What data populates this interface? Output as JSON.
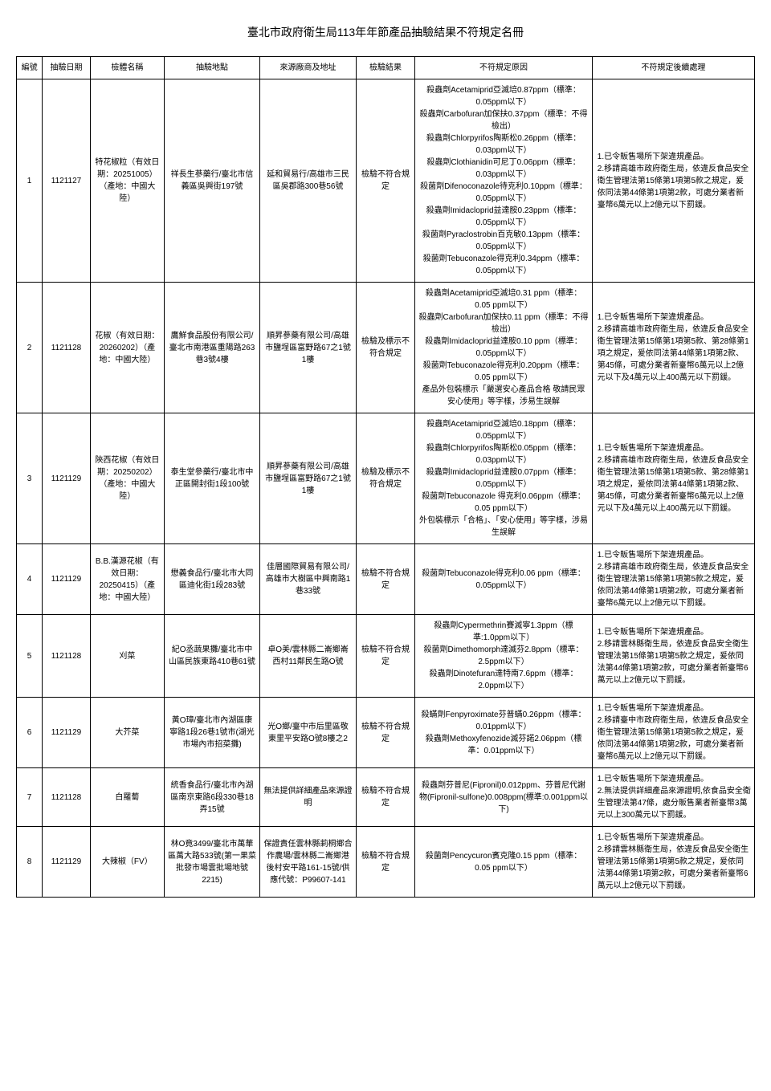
{
  "title": "臺北市政府衛生局113年年節產品抽驗結果不符規定名冊",
  "columns": [
    "編號",
    "抽驗日期",
    "檢體名稱",
    "抽驗地點",
    "來源廠商及地址",
    "檢驗結果",
    "不符規定原因",
    "不符規定後續處理"
  ],
  "rows": [
    {
      "no": "1",
      "date": "1121127",
      "name": "特花椒粒（有效日期：20251005）（產地：中國大陸）",
      "location": "祥長生蔘藥行/臺北市信義區吳興街197號",
      "source": "延和貿易行/高雄市三民區吳郡路300巷56號",
      "result": "檢驗不符合規定",
      "reason": "殺蟲劑Acetamiprid亞滅培0.87ppm（標準：0.05ppm以下）\n殺蟲劑Carbofuran加保扶0.37ppm（標準：不得檢出）\n殺蟲劑Chlorpyrifos陶斯松0.26ppm（標準：0.03ppm以下）\n殺蟲劑Clothianidin可尼丁0.06ppm（標準：0.03ppm以下）\n殺菌劑Difenoconazole待克利0.10ppm（標準：0.05ppm以下）\n殺蟲劑Imidacloprid益達胺0.23ppm（標準：0.05ppm以下）\n殺菌劑Pyraclostrobin百克敏0.13ppm（標準：0.05ppm以下）\n殺菌劑Tebuconazole得克利0.34ppm（標準：0.05ppm以下）",
      "action": "1.已令販售場所下架違規產品。\n2.移請高雄市政府衛生局，依違反食品安全衛生管理法第15條第1項第5款之規定，爰依同法第44條第1項第2款，可處分業者新臺幣6萬元以上2億元以下罰鍰。"
    },
    {
      "no": "2",
      "date": "1121128",
      "name": "花椒（有效日期：20260202）（產地：中國大陸）",
      "location": "鷹鮮食品股份有限公司/臺北市南港區重陽路263巷3號4樓",
      "source": "順昇蔘藥有限公司/高雄市鹽埕區富野路67之1號1樓",
      "result": "檢驗及標示不符合規定",
      "reason": "殺蟲劑Acetamiprid亞滅培0.31 ppm（標準：0.05 ppm以下）\n殺蟲劑Carbofuran加保扶0.11 ppm（標準：不得檢出）\n殺蟲劑Imidacloprid益達胺0.10 ppm（標準：0.05ppm以下）\n殺菌劑Tebuconazole得克利0.20ppm（標準：0.05 ppm以下）\n產品外包裝標示「嚴選安心產品合格 敬請民眾安心使用」等字樣，涉易生誤解",
      "action": "1.已令販售場所下架違規產品。\n2.移請高雄市政府衛生局，依違反食品安全衛生管理法第15條第1項第5款、第28條第1項之規定，爰依同法第44條第1項第2款、第45條，可處分業者新臺幣6萬元以上2億元以下及4萬元以上400萬元以下罰鍰。"
    },
    {
      "no": "3",
      "date": "1121129",
      "name": "陝西花椒（有效日期：20250202）（產地：中國大陸）",
      "location": "泰生堂參藥行/臺北市中正區開封街1段100號",
      "source": "順昇蔘藥有限公司/高雄市鹽埕區富野路67之1號1樓",
      "result": "檢驗及標示不符合規定",
      "reason": "殺蟲劑Acetamiprid亞滅培0.18ppm（標準：0.05ppm以下）\n殺蟲劑Chlorpyrifos陶斯松0.05ppm（標準：0.03ppm以下）\n殺蟲劑Imidacloprid益達胺0.07ppm（標準：0.05ppm以下）\n殺菌劑Tebuconazole 得克利0.06ppm（標準：0.05 ppm以下）\n外包裝標示「合格」、「安心使用」等字樣，涉易生誤解",
      "action": "1.已令販售場所下架違規產品。\n2.移請高雄市政府衛生局，依違反食品安全衛生管理法第15條第1項第5款、第28條第1項之規定，爰依同法第44條第1項第2款、第45條，可處分業者新臺幣6萬元以上2億元以下及4萬元以上400萬元以下罰鍰。"
    },
    {
      "no": "4",
      "date": "1121129",
      "name": "B.B.漢源花椒（有效日期：20250415）（產地：中國大陸）",
      "location": "懋義食品行/臺北市大同區迪化街1段283號",
      "source": "佳層國際貿易有限公司/高雄市大樹區中興南路1巷33號",
      "result": "檢驗不符合規定",
      "reason": "殺菌劑Tebuconazole得克利0.06 ppm（標準：0.05ppm以下）",
      "action": "1.已令販售場所下架違規產品。\n2.移請高雄市政府衛生局，依違反食品安全衛生管理法第15條第1項第5款之規定，爰依同法第44條第1項第2款，可處分業者新臺幣6萬元以上2億元以下罰鍰。"
    },
    {
      "no": "5",
      "date": "1121128",
      "name": "刈菜",
      "location": "紀O丞蔬果攤/臺北市中山區民族東路410巷61號",
      "source": "卓O美/雲林縣二崙鄉崙西村11鄰民生路O號",
      "result": "檢驗不符合規定",
      "reason": "殺蟲劑Cypermethrin賽滅寧1.3ppm（標準:1.0ppm以下）\n殺菌劑Dimethomorph達滅芬2.8ppm（標準：2.5ppm以下）\n殺蟲劑Dinotefuran達特南7.6ppm（標準：2.0ppm以下）",
      "action": "1.已令販售場所下架違規產品。\n2.移請雲林縣衛生局，依違反食品安全衛生管理法第15條第1項第5款之規定，爰依同法第44條第1項第2款，可處分業者新臺幣6萬元以上2億元以下罰鍰。"
    },
    {
      "no": "6",
      "date": "1121129",
      "name": "大芥菜",
      "location": "黃O璋/臺北市內湖區康寧路1段26巷1號市(湖光市場內市招菜攤)",
      "source": "光O鄉/臺中市后里區敬東里平安路O號8樓之2",
      "result": "檢驗不符合規定",
      "reason": "殺蟎劑Fenpyroximate芬普蟎0.26ppm（標準：0.01ppm以下）\n殺蟲劑Methoxyfenozide滅芬諾2.06ppm（標準：0.01ppm以下）",
      "action": "1.已令販售場所下架違規產品。\n2.移請臺中市政府衛生局，依違反食品安全衛生管理法第15條第1項第5款之規定，爰依同法第44條第1項第2款，可處分業者新臺幣6萬元以上2億元以下罰鍰。"
    },
    {
      "no": "7",
      "date": "1121128",
      "name": "白羅蔔",
      "location": "統香食品行/臺北市內湖區南京東路6段330巷18弄15號",
      "source": "無法提供詳細產品來源證明",
      "result": "檢驗不符合規定",
      "reason": "殺蟲劑芬普尼(Fipronil)0.012ppm、芬普尼代謝物(Fipronil-sulfone)0.008ppm(標準:0.001ppm以下)",
      "action": "1.已令販售場所下架違規產品。\n2.無法提供詳細產品來源證明,依食品安全衛生管理法第47條，處分販售業者新臺幣3萬元以上300萬元以下罰鍰。"
    },
    {
      "no": "8",
      "date": "1121129",
      "name": "大辣椒（FV）",
      "location": "林O竟3499/臺北市萬華區萬大路533號(第一果菜批發市場雲批場地號2215)",
      "source": "保證責任雲林縣莿桐鄉合作農場/雲林縣二崙鄉港後村安平路161-15號/供應代號：P99607-141",
      "result": "檢驗不符合規定",
      "reason": "殺菌劑Pencycuron賓克隆0.15 ppm（標準：0.05 ppm以下）",
      "action": "1.已令販售場所下架違規產品。\n2.移請雲林縣衛生局，依違反食品安全衛生管理法第15條第1項第5款之規定，爰依同法第44條第1項第2款，可處分業者新臺幣6萬元以上2億元以下罰鍰。"
    }
  ]
}
